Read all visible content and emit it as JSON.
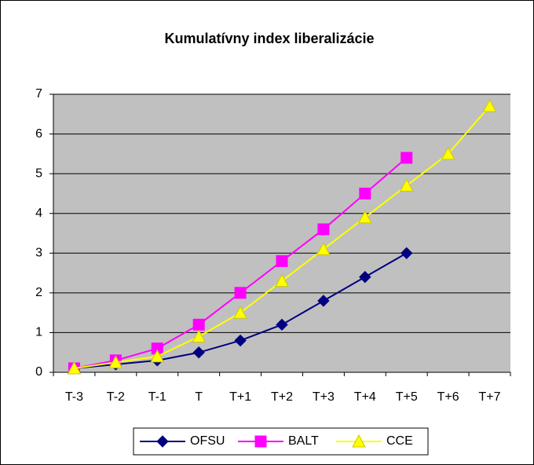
{
  "chart_data": {
    "type": "line",
    "title": "Kumulatívny index liberalizácie",
    "categories": [
      "T-3",
      "T-2",
      "T-1",
      "T",
      "T+1",
      "T+2",
      "T+3",
      "T+4",
      "T+5",
      "T+6",
      "T+7"
    ],
    "series": [
      {
        "name": "OFSU",
        "color": "#000080",
        "marker": "diamond",
        "values": [
          0.1,
          0.2,
          0.3,
          0.5,
          0.8,
          1.2,
          1.8,
          2.4,
          3.0,
          null,
          null
        ]
      },
      {
        "name": "BALT",
        "color": "#ff00ff",
        "marker": "square",
        "values": [
          0.1,
          0.3,
          0.6,
          1.2,
          2.0,
          2.8,
          3.6,
          4.5,
          5.4,
          null,
          null
        ]
      },
      {
        "name": "CCE",
        "color": "#ffff00",
        "marker": "triangle",
        "values": [
          0.1,
          0.25,
          0.4,
          0.9,
          1.5,
          2.3,
          3.1,
          3.9,
          4.7,
          5.5,
          6.7
        ]
      }
    ],
    "ylim": [
      0,
      7
    ],
    "yticks": [
      0,
      1,
      2,
      3,
      4,
      5,
      6,
      7
    ],
    "grid": true,
    "plot_background": "#c0c0c0",
    "legend": "bottom"
  }
}
